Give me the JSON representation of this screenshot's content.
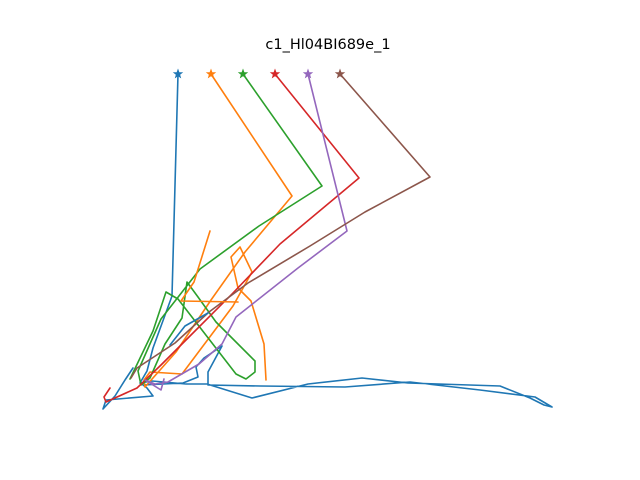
{
  "chart_data": {
    "type": "line",
    "title": "c1_Hl04BI689e_1",
    "xlabel": "",
    "ylabel": "",
    "axes_visible": false,
    "grid": false,
    "legend": "none",
    "series": [
      {
        "color": "#1f77b4",
        "marker_end": "star",
        "points": [
          [
            178,
            74
          ],
          [
            172,
            296
          ],
          [
            153,
            348
          ],
          [
            147,
            371
          ],
          [
            140,
            383
          ],
          [
            152,
            381
          ],
          [
            186,
            384
          ],
          [
            207,
            384
          ],
          [
            252,
            398
          ],
          [
            308,
            384
          ],
          [
            362,
            378
          ],
          [
            408,
            383
          ],
          [
            500,
            386
          ],
          [
            530,
            398
          ],
          [
            544,
            405
          ],
          [
            552,
            407
          ],
          [
            535,
            397
          ],
          [
            480,
            390
          ],
          [
            410,
            382
          ],
          [
            345,
            387
          ],
          [
            260,
            386
          ],
          [
            208,
            385
          ],
          [
            208,
            372
          ],
          [
            222,
            346
          ],
          [
            204,
            358
          ],
          [
            196,
            367
          ],
          [
            198,
            377
          ],
          [
            183,
            383
          ],
          [
            143,
            385
          ],
          [
            147,
            388
          ],
          [
            153,
            396
          ],
          [
            106,
            400
          ],
          [
            103,
            409
          ],
          [
            115,
            396
          ],
          [
            125,
            380
          ],
          [
            133,
            368
          ]
        ]
      },
      {
        "color": "#ff7f0e",
        "marker_end": "star",
        "points": [
          [
            211,
            74
          ],
          [
            292,
            196
          ],
          [
            245,
            252
          ],
          [
            211,
            300
          ],
          [
            176,
            352
          ],
          [
            145,
            387
          ],
          [
            144,
            380
          ],
          [
            150,
            372
          ],
          [
            182,
            374
          ],
          [
            233,
            306
          ],
          [
            252,
            272
          ],
          [
            240,
            247
          ],
          [
            231,
            257
          ],
          [
            238,
            288
          ],
          [
            251,
            301
          ],
          [
            264,
            344
          ],
          [
            266,
            380
          ]
        ]
      },
      {
        "color": "#2ca02c",
        "marker_end": "star",
        "points": [
          [
            243,
            74
          ],
          [
            322,
            186
          ],
          [
            259,
            226
          ],
          [
            200,
            269
          ],
          [
            161,
            319
          ],
          [
            138,
            371
          ],
          [
            141,
            385
          ],
          [
            150,
            378
          ],
          [
            165,
            344
          ],
          [
            182,
            318
          ],
          [
            187,
            282
          ],
          [
            198,
            297
          ],
          [
            216,
            322
          ],
          [
            255,
            361
          ],
          [
            255,
            372
          ],
          [
            246,
            379
          ],
          [
            236,
            374
          ],
          [
            178,
            299
          ],
          [
            166,
            292
          ],
          [
            153,
            331
          ],
          [
            130,
            379
          ]
        ]
      },
      {
        "color": "#d62728",
        "marker_end": "star",
        "points": [
          [
            275,
            74
          ],
          [
            359,
            178
          ],
          [
            280,
            244
          ],
          [
            232,
            294
          ],
          [
            190,
            336
          ],
          [
            161,
            365
          ],
          [
            137,
            388
          ],
          [
            106,
            402
          ],
          [
            104,
            397
          ],
          [
            110,
            388
          ]
        ]
      },
      {
        "color": "#9467bd",
        "marker_end": "star",
        "points": [
          [
            308,
            74
          ],
          [
            347,
            231
          ],
          [
            298,
            268
          ],
          [
            236,
            317
          ],
          [
            222,
            344
          ],
          [
            199,
            364
          ],
          [
            168,
            382
          ],
          [
            155,
            384
          ],
          [
            145,
            380
          ],
          [
            161,
            390
          ],
          [
            164,
            379
          ]
        ]
      },
      {
        "color": "#8c564b",
        "marker_end": "star",
        "points": [
          [
            340,
            74
          ],
          [
            430,
            177
          ],
          [
            365,
            212
          ],
          [
            310,
            246
          ],
          [
            248,
            283
          ],
          [
            209,
            312
          ],
          [
            175,
            343
          ],
          [
            137,
            368
          ],
          [
            131,
            378
          ]
        ]
      },
      {
        "color": "#ff7f0e",
        "marker_end": "none",
        "points": [
          [
            210,
            231
          ],
          [
            194,
            282
          ],
          [
            181,
            301
          ],
          [
            238,
            302
          ]
        ]
      },
      {
        "color": "#1f77b4",
        "marker_end": "none",
        "points": [
          [
            208,
            313
          ],
          [
            185,
            326
          ],
          [
            170,
            345
          ]
        ]
      }
    ]
  }
}
